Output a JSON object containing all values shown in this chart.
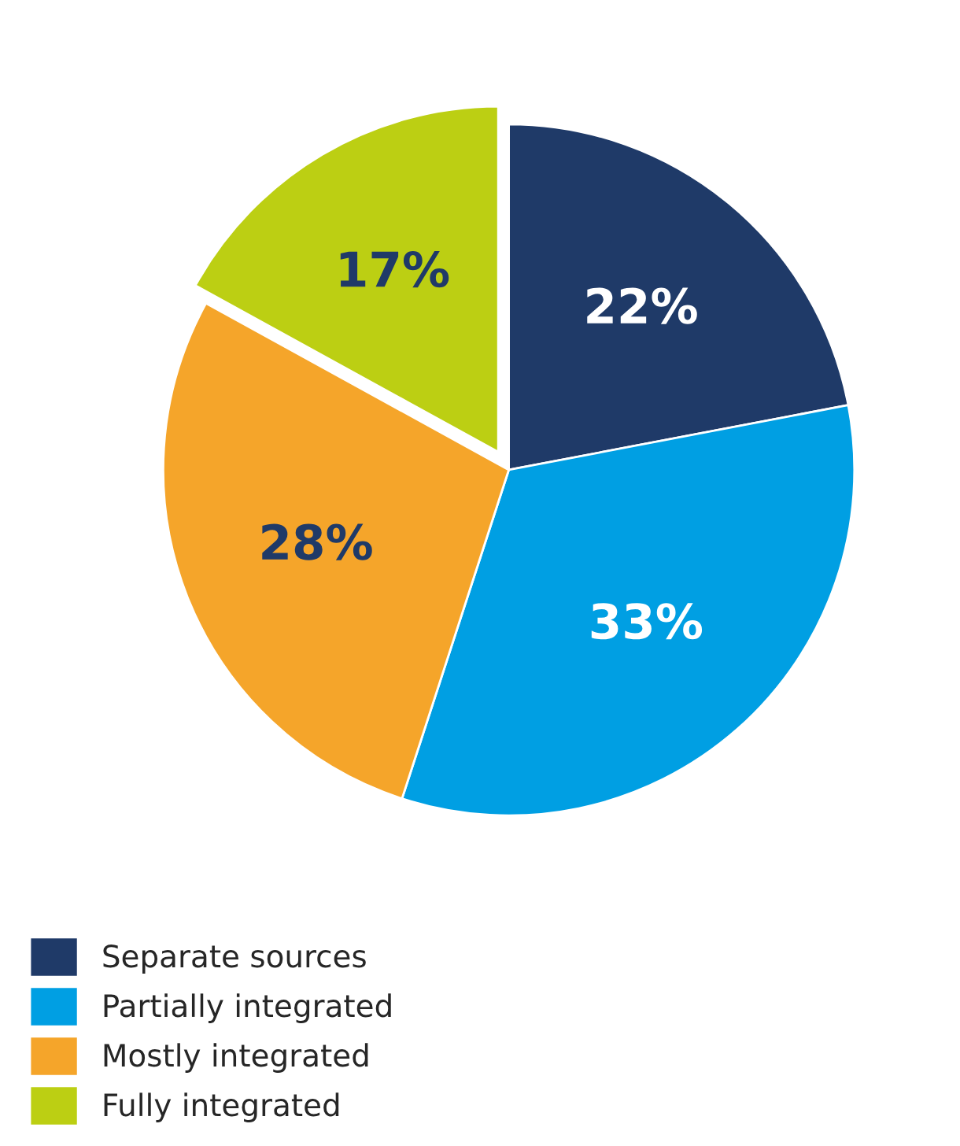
{
  "chart_data": {
    "type": "pie",
    "categories": [
      "Separate sources",
      "Partially integrated",
      "Mostly integrated",
      "Fully integrated"
    ],
    "values": [
      22,
      33,
      28,
      17
    ],
    "colors": [
      "#1f3a68",
      "#009fe3",
      "#f5a52a",
      "#bccf13"
    ],
    "value_labels": [
      "22%",
      "33%",
      "28%",
      "17%"
    ],
    "legend": "bottom left"
  }
}
